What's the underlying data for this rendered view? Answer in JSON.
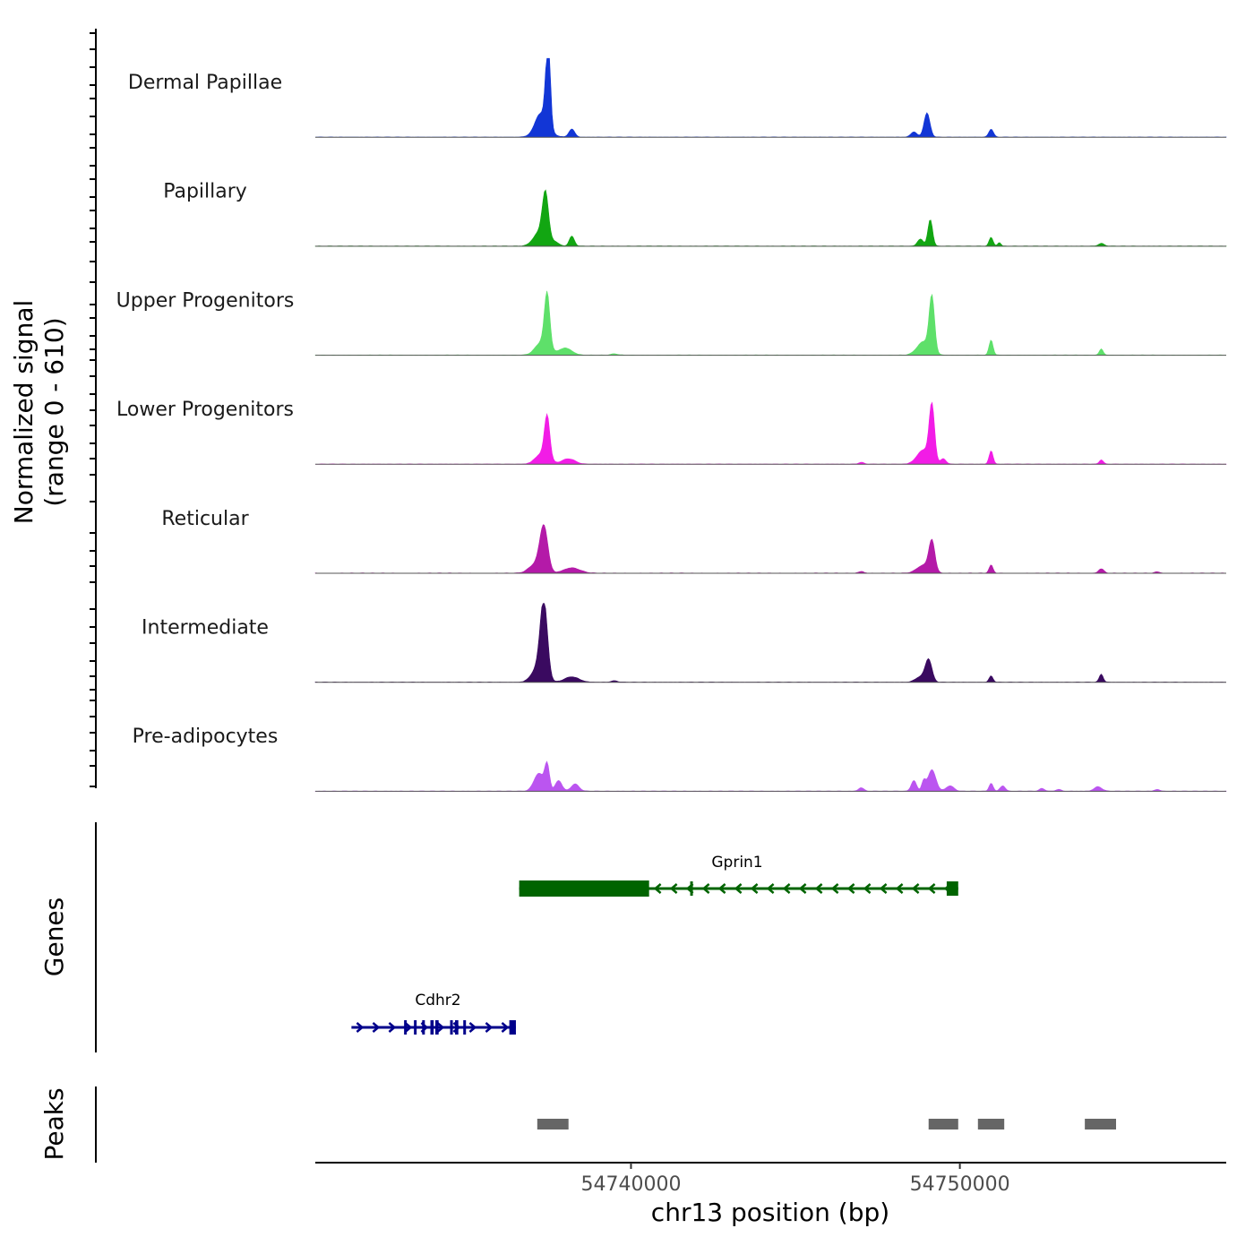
{
  "chart_data": {
    "type": "area",
    "chromosome": "chr13",
    "xlim": [
      54730400,
      54758100
    ],
    "xlabel": "chr13 position (bp)",
    "ylabel_line1": "Normalized signal",
    "ylabel_line2": "(range 0 - 610)",
    "ylim": [
      0,
      610
    ],
    "x_ticks": [
      {
        "value": 54740000,
        "label": "54740000"
      },
      {
        "value": 54750000,
        "label": "54750000"
      }
    ],
    "series": [
      {
        "name": "Dermal Papillae",
        "color": "#1236d6",
        "peaks": [
          [
            54737200,
            90,
            120
          ],
          [
            54737450,
            520,
            70
          ],
          [
            54737500,
            560,
            60
          ],
          [
            54737300,
            180,
            220
          ],
          [
            54738200,
            90,
            90
          ],
          [
            54749000,
            270,
            90
          ],
          [
            54748600,
            60,
            90
          ],
          [
            54750950,
            90,
            70
          ]
        ]
      },
      {
        "name": "Papillary",
        "color": "#12a612",
        "peaks": [
          [
            54737400,
            500,
            90
          ],
          [
            54737250,
            170,
            200
          ],
          [
            54737700,
            40,
            110
          ],
          [
            54738200,
            110,
            80
          ],
          [
            54749100,
            300,
            70
          ],
          [
            54748800,
            80,
            90
          ],
          [
            54750950,
            100,
            60
          ],
          [
            54751200,
            40,
            50
          ],
          [
            54754300,
            30,
            90
          ]
        ]
      },
      {
        "name": "Upper Progenitors",
        "color": "#5ee06a",
        "peaks": [
          [
            54737450,
            600,
            80
          ],
          [
            54737300,
            150,
            200
          ],
          [
            54738000,
            80,
            200
          ],
          [
            54749150,
            610,
            80
          ],
          [
            54748900,
            150,
            200
          ],
          [
            54750950,
            170,
            60
          ],
          [
            54754300,
            70,
            60
          ],
          [
            54739500,
            15,
            100
          ]
        ]
      },
      {
        "name": "Lower Progenitors",
        "color": "#f21ce6",
        "peaks": [
          [
            54737450,
            470,
            80
          ],
          [
            54737300,
            120,
            200
          ],
          [
            54738100,
            60,
            200
          ],
          [
            54749150,
            620,
            80
          ],
          [
            54748900,
            160,
            200
          ],
          [
            54750950,
            150,
            60
          ],
          [
            54749500,
            60,
            80
          ],
          [
            54754300,
            50,
            60
          ],
          [
            54747000,
            20,
            80
          ]
        ]
      },
      {
        "name": "Reticular",
        "color": "#b41aa8",
        "peaks": [
          [
            54737350,
            500,
            120
          ],
          [
            54737100,
            100,
            200
          ],
          [
            54738200,
            60,
            250
          ],
          [
            54749150,
            340,
            90
          ],
          [
            54748900,
            90,
            200
          ],
          [
            54750950,
            90,
            60
          ],
          [
            54754300,
            50,
            80
          ],
          [
            54747000,
            20,
            80
          ],
          [
            54756000,
            15,
            80
          ]
        ]
      },
      {
        "name": "Intermediate",
        "color": "#3a0a60",
        "peaks": [
          [
            54737350,
            860,
            110
          ],
          [
            54737150,
            150,
            180
          ],
          [
            54738200,
            60,
            220
          ],
          [
            54749050,
            250,
            100
          ],
          [
            54748800,
            60,
            150
          ],
          [
            54750950,
            70,
            60
          ],
          [
            54754300,
            90,
            60
          ],
          [
            54739500,
            15,
            100
          ]
        ]
      },
      {
        "name": "Pre-adipocytes",
        "color": "#bb55f0",
        "peaks": [
          [
            54737200,
            200,
            150
          ],
          [
            54737450,
            280,
            70
          ],
          [
            54737800,
            120,
            100
          ],
          [
            54738300,
            80,
            120
          ],
          [
            54748600,
            120,
            80
          ],
          [
            54748900,
            110,
            60
          ],
          [
            54749150,
            240,
            120
          ],
          [
            54749700,
            60,
            120
          ],
          [
            54750950,
            90,
            60
          ],
          [
            54751300,
            60,
            80
          ],
          [
            54747000,
            40,
            80
          ],
          [
            54752500,
            30,
            80
          ],
          [
            54754200,
            50,
            120
          ],
          [
            54753000,
            20,
            80
          ],
          [
            54756000,
            20,
            80
          ]
        ]
      }
    ],
    "genes_label": "Genes",
    "genes": [
      {
        "name": "Gprin1",
        "strand": "-",
        "start": 54736600,
        "end": 54749950,
        "color": "#006400",
        "exons": [
          [
            54736600,
            54740550
          ],
          [
            54741800,
            54741850
          ],
          [
            54749600,
            54749950
          ]
        ]
      },
      {
        "name": "Cdhr2",
        "strand": "+",
        "start": 54731500,
        "end": 54736500,
        "color": "#00008b",
        "exons": [
          [
            54733100,
            54733150
          ],
          [
            54733400,
            54733450
          ],
          [
            54733650,
            54733700
          ],
          [
            54733900,
            54734000
          ],
          [
            54734050,
            54734150
          ],
          [
            54734500,
            54734550
          ],
          [
            54734650,
            54734750
          ],
          [
            54734900,
            54734950
          ],
          [
            54736300,
            54736500
          ]
        ]
      }
    ],
    "peaks_label": "Peaks",
    "peaks": [
      [
        54737150,
        54738100
      ],
      [
        54749050,
        54749950
      ],
      [
        54750550,
        54751350
      ],
      [
        54753800,
        54754750
      ]
    ]
  }
}
